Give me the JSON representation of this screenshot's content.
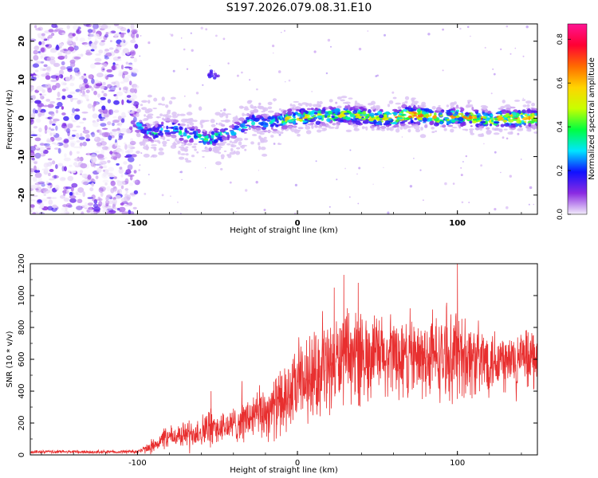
{
  "title": "S197.2026.079.08.31.E10",
  "colors": {
    "snr_line": "#e82f2f",
    "frame": "#000000"
  },
  "chart_data": [
    {
      "type": "heatmap",
      "name": "spectrogram",
      "xlabel": "Height of straight line (km)",
      "ylabel": "Frequency (Hz)",
      "xlim": [
        -167,
        150
      ],
      "ylim": [
        -25,
        24.5
      ],
      "xticks": [
        "-100",
        "0",
        "100"
      ],
      "yticks": [
        "-20",
        "-10",
        "0",
        "10",
        "20"
      ],
      "colorbar": {
        "label": "Normalized spectral amplitude",
        "range": [
          0.0,
          0.87
        ],
        "ticks": [
          "0.0",
          "0.2",
          "0.4",
          "0.6",
          "0.8"
        ],
        "colormap": [
          "#f2ecfa",
          "#8a2be2",
          "#1010ff",
          "#00e5ff",
          "#00ff40",
          "#c8ff00",
          "#ffd400",
          "#ff6a00",
          "#ff0033",
          "#ff1493"
        ]
      },
      "signal_band": {
        "x": [
          -100,
          -95,
          -90,
          -85,
          -80,
          -75,
          -70,
          -65,
          -60,
          -55,
          -50,
          -45,
          -40,
          -35,
          -30,
          -25,
          -20,
          -15,
          -10,
          -5,
          0,
          10,
          20,
          30,
          40,
          50,
          60,
          70,
          80,
          90,
          100,
          110,
          120,
          130,
          140,
          150
        ],
        "center_hz": [
          -1.5,
          -3.5,
          -4.0,
          -3.0,
          -2.5,
          -3.0,
          -4.5,
          -4.0,
          -5.0,
          -6.0,
          -4.5,
          -4.0,
          -3.5,
          -2.5,
          -1.0,
          -0.5,
          -1.5,
          -1.0,
          -0.5,
          0.0,
          0.0,
          0.5,
          0.5,
          1.0,
          0.5,
          0.0,
          0.0,
          1.0,
          0.5,
          0.0,
          0.5,
          0.0,
          -0.5,
          0.0,
          0.0,
          0.0
        ],
        "peak_amplitude": [
          0.25,
          0.3,
          0.35,
          0.3,
          0.3,
          0.32,
          0.35,
          0.3,
          0.35,
          0.4,
          0.35,
          0.35,
          0.32,
          0.32,
          0.35,
          0.35,
          0.38,
          0.4,
          0.45,
          0.5,
          0.55,
          0.55,
          0.5,
          0.5,
          0.55,
          0.55,
          0.6,
          0.7,
          0.6,
          0.55,
          0.6,
          0.6,
          0.65,
          0.7,
          0.72,
          0.6
        ]
      },
      "noise_region_x": [
        -167,
        -100
      ],
      "artifact": {
        "x": -53,
        "frequency_hz": 11.5
      }
    },
    {
      "type": "line",
      "name": "snr",
      "xlabel": "Height of straight line (km)",
      "ylabel": "SNR (10 * v/v)",
      "xlim": [
        -167,
        150
      ],
      "ylim": [
        0,
        1200
      ],
      "xticks": [
        "-100",
        "0",
        "100"
      ],
      "yticks": [
        "0",
        "200",
        "400",
        "600",
        "800",
        "1000",
        "1200"
      ],
      "series": [
        {
          "name": "SNR",
          "x": [
            -167,
            -150,
            -130,
            -110,
            -100,
            -95,
            -90,
            -85,
            -80,
            -75,
            -70,
            -65,
            -60,
            -55,
            -50,
            -45,
            -40,
            -35,
            -30,
            -25,
            -20,
            -15,
            -10,
            -5,
            0,
            5,
            10,
            15,
            20,
            25,
            30,
            35,
            40,
            45,
            50,
            55,
            60,
            65,
            70,
            75,
            80,
            85,
            90,
            95,
            100,
            105,
            110,
            115,
            120,
            125,
            130,
            135,
            140,
            145,
            150
          ],
          "mean": [
            18,
            20,
            18,
            20,
            22,
            35,
            60,
            90,
            110,
            120,
            130,
            140,
            150,
            170,
            165,
            175,
            190,
            210,
            230,
            250,
            270,
            300,
            330,
            370,
            420,
            460,
            500,
            530,
            560,
            590,
            600,
            620,
            630,
            610,
            620,
            600,
            610,
            620,
            600,
            590,
            610,
            620,
            600,
            610,
            640,
            620,
            600,
            590,
            600,
            610,
            580,
            590,
            600,
            610,
            600
          ],
          "spread": [
            12,
            12,
            12,
            12,
            15,
            30,
            60,
            70,
            80,
            90,
            95,
            110,
            120,
            150,
            110,
            120,
            130,
            150,
            170,
            190,
            210,
            230,
            250,
            260,
            280,
            300,
            320,
            320,
            330,
            330,
            330,
            330,
            330,
            320,
            320,
            310,
            310,
            320,
            310,
            300,
            310,
            320,
            300,
            300,
            330,
            300,
            290,
            270,
            260,
            250,
            240,
            230,
            220,
            210,
            200
          ],
          "peaks": [
            {
              "x": -54,
              "y": 400
            },
            {
              "x": 23,
              "y": 1050
            },
            {
              "x": 29,
              "y": 1130
            },
            {
              "x": 38,
              "y": 1080
            },
            {
              "x": 100,
              "y": 1200
            }
          ]
        }
      ]
    }
  ]
}
